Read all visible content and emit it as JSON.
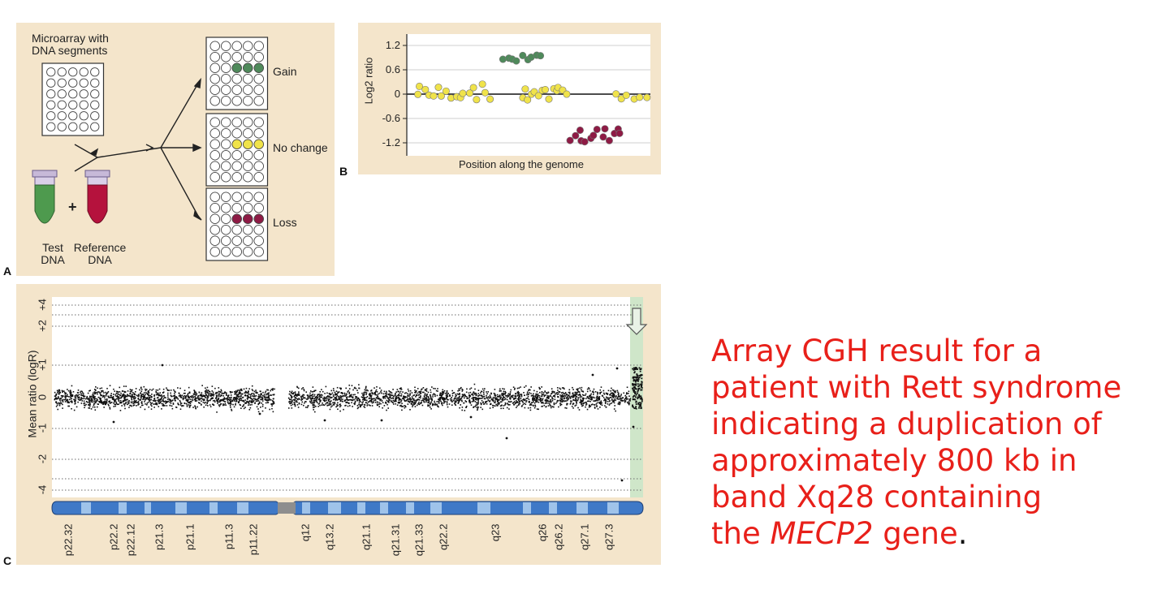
{
  "panel_a": {
    "label": "A",
    "microarray_label_line1": "Microarray with",
    "microarray_label_line2": "DNA segments",
    "plus": "+",
    "test_line1": "Test",
    "test_line2": "DNA",
    "ref_line1": "Reference",
    "ref_line2": "DNA",
    "outcomes": [
      "Gain",
      "No change",
      "Loss"
    ],
    "colors": {
      "gain": "#4f8a5b",
      "nochange": "#f0e34a",
      "loss": "#8e1b45",
      "test_tube": "#4e9a4e",
      "ref_tube": "#b5123d"
    }
  },
  "panel_b": {
    "label": "B",
    "ylabel": "Log2 ratio",
    "xlabel": "Position along the genome",
    "yticks": [
      "1.2",
      "0.6",
      "0",
      "-0.6",
      "-1.2"
    ]
  },
  "panel_c": {
    "label": "C",
    "ylabel": "Mean ratio (logR)",
    "yticks": [
      "+4",
      "+2",
      "+1",
      "0",
      "-1",
      "-2",
      "-4"
    ],
    "bands": [
      "p22.32",
      "p22.2",
      "p22.12",
      "p21.3",
      "p21.1",
      "p11.3",
      "p11.22",
      "q12",
      "q13.2",
      "q21.1",
      "q21.31",
      "q21.33",
      "q22.2",
      "q23",
      "q26",
      "q26.2",
      "q27.1",
      "q27.3"
    ]
  },
  "caption": {
    "line1": "Array CGH result for a",
    "line2": "patient with Rett syndrome",
    "line3": "indicating a duplication of",
    "line4": "approximately 800 kb in",
    "line5": "band Xq28 containing",
    "line6_pre": "the ",
    "gene": "MECP2",
    "line6_post": " gene",
    "period": "."
  }
}
